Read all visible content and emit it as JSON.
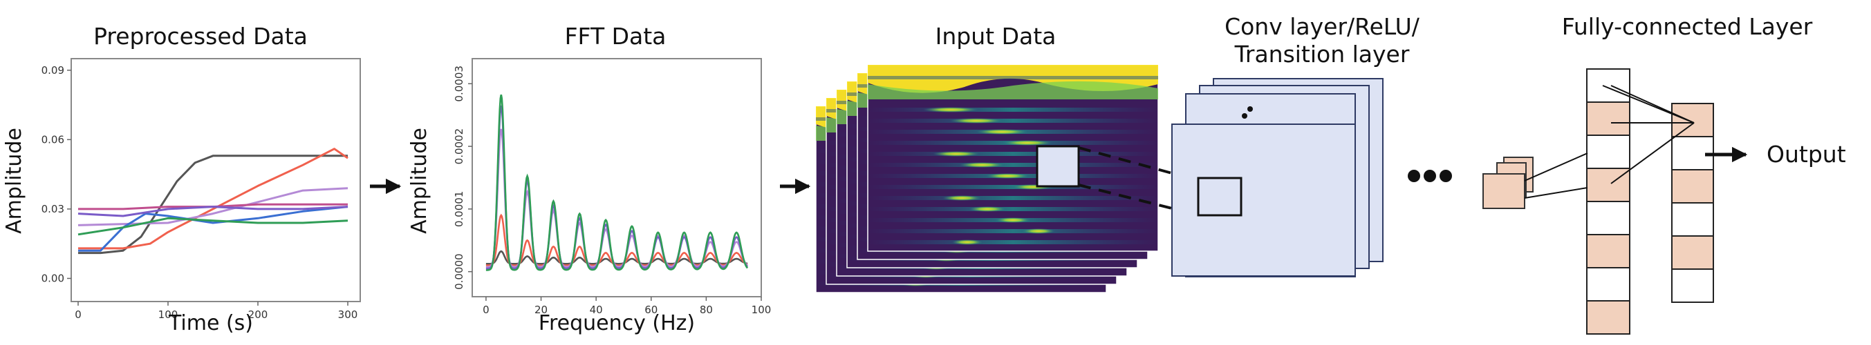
{
  "colors": {
    "series": [
      "#555555",
      "#f0604d",
      "#b48ad6",
      "#3a6fd2",
      "#2f9d56",
      "#c04e8e",
      "#7a5bc8"
    ],
    "panel_fill": "#dde3f4",
    "panel_stroke": "#2e3a64",
    "fc_fill": "#f2d1bd",
    "heat_low": "#3b1c5a",
    "heat_mid": "#21908c",
    "heat_high": "#fde725"
  },
  "stages": {
    "preprocessed": {
      "title": "Preprocessed Data",
      "ylabel": "Amplitude",
      "xlabel": "Time (s)",
      "xticks": [
        "0",
        "100",
        "200",
        "300"
      ],
      "yticks": [
        "0.00",
        "0.03",
        "0.06",
        "0.09"
      ]
    },
    "fft": {
      "title": "FFT Data",
      "ylabel": "Amplitude",
      "xlabel": "Frequency (Hz)",
      "xticks": [
        "0",
        "20",
        "40",
        "60",
        "80",
        "100"
      ],
      "yticks": [
        "0.0000",
        "0.0001",
        "0.0002",
        "0.0003"
      ]
    },
    "input": {
      "title": "Input Data"
    },
    "conv": {
      "title_line1": "Conv layer/ReLU/",
      "title_line2": "Transition layer"
    },
    "fc": {
      "title": "Fully-connected Layer"
    },
    "output": {
      "label": "Output"
    }
  },
  "chart_data": [
    {
      "type": "line",
      "title": "Preprocessed Data",
      "xlabel": "Time (s)",
      "ylabel": "Amplitude",
      "xlim": [
        0,
        300
      ],
      "ylim": [
        -0.01,
        0.095
      ],
      "series": [
        {
          "x": [
            0,
            25,
            50,
            70,
            90,
            110,
            130,
            150,
            175,
            200,
            250,
            300
          ],
          "values": [
            0.011,
            0.011,
            0.012,
            0.018,
            0.03,
            0.042,
            0.05,
            0.053,
            0.053,
            0.053,
            0.053,
            0.053
          ]
        },
        {
          "x": [
            0,
            50,
            80,
            100,
            150,
            200,
            250,
            285,
            300
          ],
          "values": [
            0.013,
            0.013,
            0.015,
            0.02,
            0.03,
            0.04,
            0.049,
            0.056,
            0.052
          ]
        },
        {
          "x": [
            0,
            100,
            150,
            200,
            250,
            300
          ],
          "values": [
            0.023,
            0.024,
            0.028,
            0.033,
            0.038,
            0.039
          ]
        },
        {
          "x": [
            0,
            25,
            50,
            75,
            100,
            150,
            200,
            250,
            300
          ],
          "values": [
            0.012,
            0.012,
            0.022,
            0.028,
            0.027,
            0.024,
            0.026,
            0.029,
            0.031
          ]
        },
        {
          "x": [
            0,
            50,
            100,
            150,
            200,
            250,
            300
          ],
          "values": [
            0.019,
            0.022,
            0.026,
            0.025,
            0.024,
            0.024,
            0.025
          ]
        },
        {
          "x": [
            0,
            50,
            100,
            150,
            200,
            250,
            300
          ],
          "values": [
            0.03,
            0.03,
            0.031,
            0.031,
            0.032,
            0.032,
            0.032
          ]
        },
        {
          "x": [
            0,
            50,
            100,
            150,
            200,
            250,
            300
          ],
          "values": [
            0.028,
            0.027,
            0.03,
            0.031,
            0.03,
            0.03,
            0.031
          ]
        }
      ]
    },
    {
      "type": "line",
      "title": "FFT Data",
      "xlabel": "Frequency (Hz)",
      "ylabel": "Amplitude",
      "xlim": [
        -5,
        100
      ],
      "ylim": [
        -4e-05,
        0.00034
      ],
      "peaks_x": [
        5.5,
        15,
        24.5,
        34,
        43.5,
        53,
        62.5,
        72,
        81.5,
        91
      ],
      "series": [
        {
          "values": [
            0.00028,
            0.00015,
            0.00011,
            9e-05,
            8e-05,
            7e-05,
            6e-05,
            6e-05,
            6e-05,
            6e-05
          ]
        },
        {
          "values": [
            0.00026,
            0.00014,
            0.0001,
            8e-05,
            7e-05,
            6e-05,
            5e-05,
            5e-05,
            5e-05,
            5e-05
          ]
        },
        {
          "values": [
            0.00022,
            0.00012,
            9e-05,
            7e-05,
            6e-05,
            5e-05,
            5e-05,
            5e-05,
            4e-05,
            4e-05
          ]
        },
        {
          "values": [
            8e-05,
            4e-05,
            3e-05,
            3e-05,
            2e-05,
            2e-05,
            2e-05,
            2e-05,
            2e-05,
            2e-05
          ]
        },
        {
          "values": [
            2e-05,
            1.2e-05,
            1e-05,
            1e-05,
            8e-06,
            8e-06,
            8e-06,
            8e-06,
            8e-06,
            8e-06
          ]
        }
      ]
    }
  ]
}
